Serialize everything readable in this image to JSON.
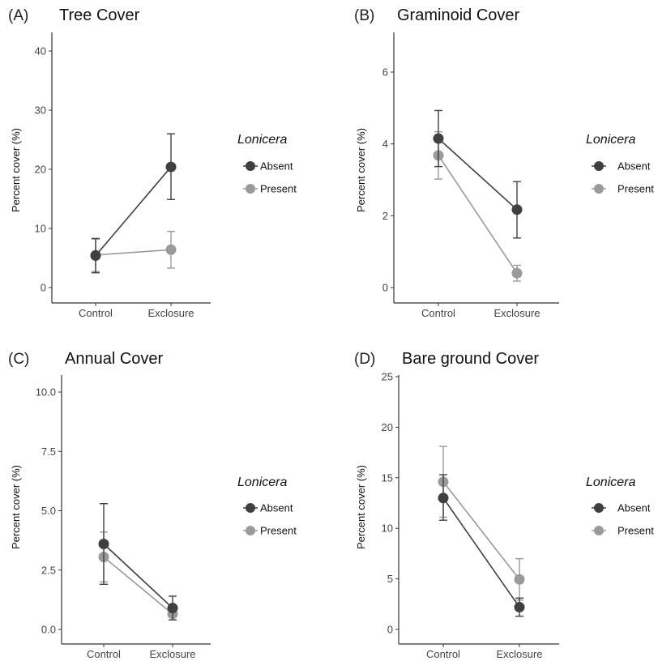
{
  "colors": {
    "absent": "#404040",
    "present": "#9a9a9a",
    "axis": "#333333"
  },
  "legend": {
    "title": "Lonicera",
    "entries": [
      "Absent",
      "Present"
    ]
  },
  "chart_data": [
    {
      "type": "line",
      "panel": "(A)",
      "title": "Tree Cover",
      "ylabel": "Percent cover (%)",
      "categories": [
        "Control",
        "Exclosure"
      ],
      "ylim": [
        0,
        40
      ],
      "yticks": [
        0,
        10,
        20,
        30,
        40
      ],
      "grid": false,
      "legend_position": "right",
      "series": [
        {
          "name": "Absent",
          "values": [
            5.4,
            20.4
          ],
          "lower": [
            2.5,
            14.9
          ],
          "upper": [
            8.3,
            26.0
          ]
        },
        {
          "name": "Present",
          "values": [
            5.5,
            6.4
          ],
          "lower": [
            2.7,
            3.3
          ],
          "upper": [
            8.2,
            9.5
          ]
        }
      ]
    },
    {
      "type": "line",
      "panel": "(B)",
      "title": "Graminoid Cover",
      "ylabel": "Percent cover (%)",
      "categories": [
        "Control",
        "Exclosure"
      ],
      "ylim": [
        0,
        6.5
      ],
      "yticks": [
        0,
        2,
        4,
        6
      ],
      "grid": false,
      "legend_position": "right",
      "series": [
        {
          "name": "Absent",
          "values": [
            4.15,
            2.17
          ],
          "lower": [
            3.37,
            1.38
          ],
          "upper": [
            4.93,
            2.95
          ]
        },
        {
          "name": "Present",
          "values": [
            3.68,
            0.4
          ],
          "lower": [
            3.02,
            0.18
          ],
          "upper": [
            4.34,
            0.62
          ]
        }
      ]
    },
    {
      "type": "line",
      "panel": "(C)",
      "title": "Annual Cover",
      "ylabel": "Percent cover (%)",
      "categories": [
        "Control",
        "Exclosure"
      ],
      "ylim": [
        0,
        10
      ],
      "yticks": [
        "0.0",
        "2.5",
        "5.0",
        "7.5",
        "10.0"
      ],
      "grid": false,
      "legend_position": "right",
      "series": [
        {
          "name": "Absent",
          "values": [
            3.6,
            0.9
          ],
          "lower": [
            1.9,
            0.4
          ],
          "upper": [
            5.3,
            1.4
          ]
        },
        {
          "name": "Present",
          "values": [
            3.05,
            0.65
          ],
          "lower": [
            2.0,
            0.4
          ],
          "upper": [
            4.1,
            0.9
          ]
        }
      ]
    },
    {
      "type": "line",
      "panel": "(D)",
      "title": "Bare ground Cover",
      "ylabel": "Percent cover (%)",
      "categories": [
        "Control",
        "Exclosure"
      ],
      "ylim": [
        0,
        25
      ],
      "yticks": [
        0,
        5,
        10,
        15,
        20,
        25
      ],
      "grid": false,
      "legend_position": "right",
      "series": [
        {
          "name": "Absent",
          "values": [
            13.0,
            2.2
          ],
          "lower": [
            10.8,
            1.3
          ],
          "upper": [
            15.3,
            3.1
          ]
        },
        {
          "name": "Present",
          "values": [
            14.6,
            4.95
          ],
          "lower": [
            11.1,
            2.9
          ],
          "upper": [
            18.1,
            7.0
          ]
        }
      ]
    }
  ]
}
